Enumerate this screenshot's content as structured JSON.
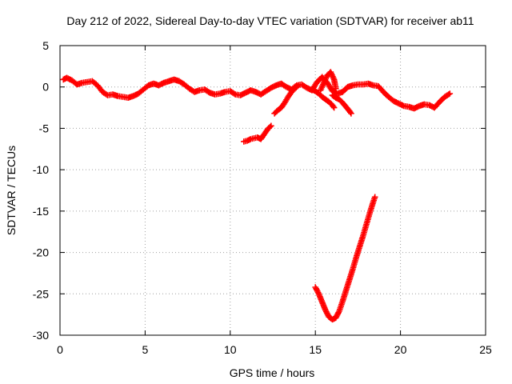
{
  "chart_data": {
    "type": "scatter",
    "title": "Day 212 of 2022, Sidereal Day-to-day VTEC variation (SDTVAR) for receiver ab11",
    "xlabel": "GPS time / hours",
    "ylabel": "SDTVAR / TECUs",
    "xlim": [
      0,
      25
    ],
    "ylim": [
      -30,
      5
    ],
    "x_ticks": [
      0,
      5,
      10,
      15,
      20,
      25
    ],
    "y_ticks": [
      -30,
      -25,
      -20,
      -15,
      -10,
      -5,
      0,
      5
    ],
    "x_tick_labels": [
      "0",
      "5",
      "10",
      "15",
      "20",
      "25"
    ],
    "y_tick_labels": [
      "-30",
      "-25",
      "-20",
      "-15",
      "-10",
      "-5",
      "0",
      "5"
    ],
    "grid": true,
    "legend": "none",
    "marker": "plus",
    "series": [
      {
        "name": "main trace",
        "color": "#ff0000",
        "x": [
          0.2,
          0.4,
          0.7,
          1.0,
          1.3,
          1.6,
          1.9,
          2.2,
          2.5,
          2.8,
          3.1,
          3.4,
          3.7,
          4.0,
          4.3,
          4.6,
          4.9,
          5.2,
          5.5,
          5.8,
          6.1,
          6.4,
          6.7,
          7.0,
          7.3,
          7.6,
          7.9,
          8.2,
          8.5,
          8.8,
          9.1,
          9.4,
          9.7,
          10.0,
          10.3,
          10.6,
          10.9,
          11.2,
          11.5,
          11.8,
          12.1,
          12.4,
          12.7,
          13.0,
          13.3,
          13.6,
          13.9,
          14.2,
          14.5,
          14.8,
          15.1,
          15.4,
          15.7,
          16.0,
          16.3,
          16.6,
          16.9,
          17.2,
          17.5,
          17.8,
          18.1,
          18.4,
          18.7,
          19.0,
          19.3,
          19.6,
          19.9,
          20.2,
          20.5,
          20.8,
          21.1,
          21.4,
          21.7,
          22.0,
          22.3,
          22.6,
          22.9
        ],
        "y": [
          0.9,
          1.1,
          0.8,
          0.3,
          0.5,
          0.6,
          0.7,
          0.2,
          -0.6,
          -1.0,
          -0.9,
          -1.1,
          -1.2,
          -1.3,
          -1.1,
          -0.8,
          -0.3,
          0.2,
          0.4,
          0.2,
          0.5,
          0.7,
          0.9,
          0.7,
          0.3,
          -0.2,
          -0.6,
          -0.4,
          -0.3,
          -0.7,
          -0.9,
          -0.8,
          -0.6,
          -0.5,
          -0.9,
          -1.0,
          -0.7,
          -0.4,
          -0.6,
          -0.9,
          -0.5,
          -0.1,
          0.2,
          0.4,
          0.0,
          -0.3,
          0.2,
          0.3,
          -0.1,
          -0.4,
          0.6,
          1.2,
          0.5,
          -0.5,
          -0.8,
          -0.6,
          0.0,
          0.2,
          0.3,
          0.3,
          0.4,
          0.2,
          0.1,
          -0.6,
          -1.2,
          -1.7,
          -2.0,
          -2.3,
          -2.4,
          -2.6,
          -2.3,
          -2.1,
          -2.2,
          -2.5,
          -1.8,
          -1.2,
          -0.8
        ]
      },
      {
        "name": "segment 10.8-12.4h",
        "color": "#ff0000",
        "x": [
          10.8,
          11.0,
          11.2,
          11.4,
          11.6,
          11.8,
          12.0,
          12.2,
          12.4
        ],
        "y": [
          -6.6,
          -6.5,
          -6.3,
          -6.2,
          -6.1,
          -6.3,
          -5.7,
          -5.1,
          -4.7
        ]
      },
      {
        "name": "segment 12.6-14.0h",
        "color": "#ff0000",
        "x": [
          12.6,
          12.8,
          13.0,
          13.2,
          13.4,
          13.6,
          13.8,
          14.0
        ],
        "y": [
          -3.2,
          -2.8,
          -2.5,
          -1.9,
          -1.2,
          -0.6,
          -0.2,
          0.2
        ]
      },
      {
        "name": "segment 15.3-16.2h",
        "color": "#ff0000",
        "x": [
          15.3,
          15.5,
          15.7,
          15.9,
          16.1,
          16.2
        ],
        "y": [
          -0.4,
          0.5,
          1.4,
          1.8,
          0.9,
          -0.2
        ]
      },
      {
        "name": "segment 16.0-17.1h",
        "color": "#ff0000",
        "x": [
          16.0,
          16.2,
          16.4,
          16.6,
          16.8,
          17.0,
          17.1
        ],
        "y": [
          -1.0,
          -1.3,
          -1.5,
          -1.9,
          -2.4,
          -2.9,
          -3.2
        ]
      },
      {
        "name": "segment 14.8-16.1h",
        "color": "#ff0000",
        "x": [
          14.8,
          15.0,
          15.2,
          15.4,
          15.6,
          15.8,
          16.0,
          16.1
        ],
        "y": [
          -0.3,
          -0.5,
          -0.8,
          -1.2,
          -1.5,
          -1.8,
          -2.2,
          -2.5
        ]
      },
      {
        "name": "V-shaped segment 15.0-18.5h",
        "color": "#ff0000",
        "x": [
          15.0,
          15.2,
          15.4,
          15.6,
          15.8,
          16.0,
          16.2,
          16.4,
          16.6,
          16.8,
          17.0,
          17.2,
          17.4,
          17.6,
          17.8,
          18.0,
          18.2,
          18.4,
          18.5
        ],
        "y": [
          -24.2,
          -25.0,
          -26.0,
          -27.0,
          -27.8,
          -28.1,
          -27.9,
          -27.1,
          -25.9,
          -24.6,
          -23.3,
          -22.0,
          -20.6,
          -19.3,
          -18.0,
          -16.6,
          -15.2,
          -13.9,
          -13.3
        ]
      }
    ]
  }
}
